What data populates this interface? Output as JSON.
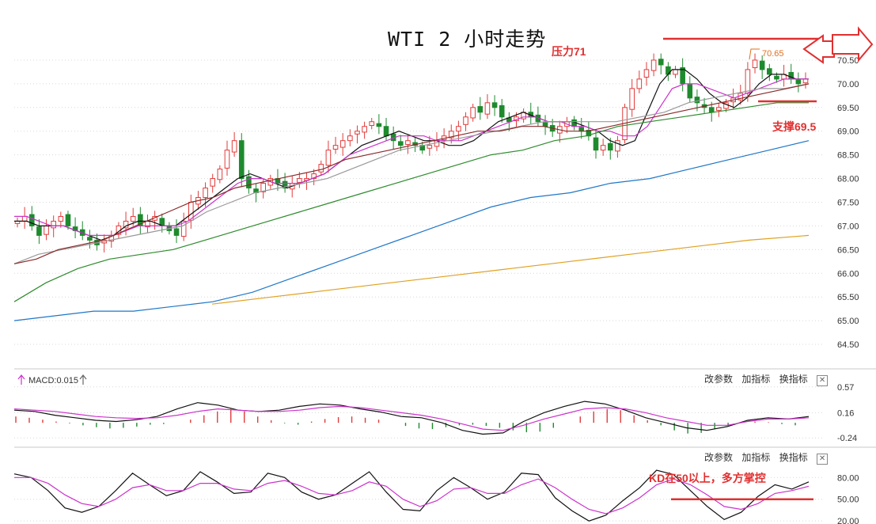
{
  "page": {
    "title": "WTI 2 小时走势"
  },
  "panels": {
    "macd": {
      "label": "MACD:0.015"
    },
    "toolbar": {
      "params": "改参数",
      "add": "加指标",
      "switch": "换指标",
      "close": "✕"
    }
  },
  "annotations": {
    "resistance": "压力71",
    "support": "支撑69.5",
    "peak": "70.65",
    "kd": "KD在50以上，多方掌控"
  },
  "colors": {
    "up": "#e23b3b",
    "down": "#1e8a2e",
    "ma5": "#111111",
    "ma10": "#cc33cc",
    "ma20": "#999999",
    "ma30": "#8b2a2a",
    "ma60": "#2e8b2e",
    "ma120": "#1f77c8",
    "ma250": "#e0a020",
    "annot": "#e03030",
    "peak": "#e07020"
  },
  "chart_data": [
    {
      "type": "candlestick",
      "title": "WTI 2 小时走势",
      "ylim": [
        64.25,
        70.85
      ],
      "y_ticks": [
        "64.50",
        "65.00",
        "65.50",
        "66.00",
        "66.50",
        "67.00",
        "67.50",
        "68.00",
        "68.50",
        "69.00",
        "69.50",
        "70.00",
        "70.50"
      ],
      "grid": true,
      "closes": [
        67.1,
        67.2,
        67.0,
        66.8,
        67.0,
        67.1,
        67.2,
        67.0,
        66.9,
        66.8,
        66.7,
        66.6,
        66.7,
        66.8,
        67.0,
        67.1,
        67.2,
        67.0,
        67.1,
        67.2,
        67.0,
        66.9,
        66.8,
        67.1,
        67.5,
        67.6,
        67.8,
        68.0,
        68.2,
        68.6,
        68.8,
        68.0,
        67.8,
        67.7,
        67.9,
        68.0,
        67.9,
        67.8,
        67.9,
        68.0,
        68.0,
        68.1,
        68.3,
        68.6,
        68.7,
        68.8,
        68.9,
        69.0,
        69.1,
        69.2,
        69.1,
        68.9,
        68.8,
        68.7,
        68.8,
        68.7,
        68.6,
        68.7,
        68.8,
        68.9,
        69.0,
        69.1,
        69.3,
        69.5,
        69.4,
        69.6,
        69.5,
        69.3,
        69.2,
        69.3,
        69.4,
        69.3,
        69.2,
        69.1,
        69.0,
        69.1,
        69.2,
        69.1,
        69.0,
        68.9,
        68.6,
        68.7,
        68.6,
        68.8,
        69.5,
        69.9,
        70.1,
        70.3,
        70.5,
        70.4,
        70.2,
        70.3,
        70.0,
        69.7,
        69.6,
        69.5,
        69.4,
        69.5,
        69.6,
        69.7,
        69.8,
        70.3,
        70.5,
        70.3,
        70.2,
        70.1,
        70.2,
        70.1,
        70.0,
        70.1
      ],
      "series": [
        {
          "name": "MA5",
          "values": [
            67.1,
            67.1,
            67.0,
            67.0,
            67.0,
            66.9,
            66.8,
            66.7,
            66.8,
            67.0,
            67.1,
            67.1,
            67.0,
            67.0,
            67.2,
            67.4,
            67.6,
            67.8,
            68.0,
            68.1,
            68.0,
            67.9,
            67.8,
            67.9,
            68.0,
            68.1,
            68.3,
            68.5,
            68.7,
            68.8,
            68.9,
            69.0,
            68.9,
            68.8,
            68.8,
            68.7,
            68.7,
            68.8,
            69.0,
            69.2,
            69.3,
            69.4,
            69.3,
            69.2,
            69.2,
            69.2,
            69.1,
            69.0,
            68.8,
            68.7,
            68.8,
            69.4,
            70.0,
            70.3,
            70.3,
            70.1,
            69.8,
            69.6,
            69.5,
            69.7,
            70.0,
            70.2,
            70.2,
            70.1,
            70.1
          ]
        },
        {
          "name": "MA10",
          "values": [
            67.2,
            67.2,
            67.1,
            67.0,
            67.0,
            66.9,
            66.8,
            66.8,
            66.8,
            66.9,
            67.0,
            67.0,
            67.0,
            67.0,
            67.1,
            67.3,
            67.5,
            67.7,
            67.9,
            68.0,
            68.0,
            67.9,
            67.9,
            67.9,
            68.0,
            68.1,
            68.3,
            68.5,
            68.6,
            68.7,
            68.8,
            68.9,
            68.9,
            68.9,
            68.8,
            68.8,
            68.8,
            68.9,
            69.0,
            69.1,
            69.2,
            69.3,
            69.3,
            69.2,
            69.2,
            69.1,
            69.1,
            69.0,
            69.0,
            68.9,
            68.9,
            69.1,
            69.5,
            69.9,
            70.0,
            70.0,
            69.9,
            69.8,
            69.7,
            69.8,
            69.9,
            70.0,
            70.1,
            70.1,
            70.1
          ]
        },
        {
          "name": "MA20",
          "values": [
            66.2,
            66.4,
            66.5,
            66.6,
            66.7,
            66.8,
            66.9,
            67.0,
            67.3,
            67.5,
            67.7,
            67.8,
            67.9,
            68.0,
            68.2,
            68.4,
            68.6,
            68.7,
            68.8,
            68.9,
            69.0,
            69.1,
            69.2,
            69.2,
            69.2,
            69.2,
            69.3,
            69.4,
            69.6,
            69.7,
            69.8,
            69.9,
            69.9,
            70.0
          ]
        },
        {
          "name": "MA30",
          "values": [
            66.2,
            66.3,
            66.5,
            66.6,
            66.7,
            66.9,
            67.1,
            67.3,
            67.5,
            67.6,
            67.8,
            67.9,
            68.0,
            68.1,
            68.2,
            68.4,
            68.5,
            68.6,
            68.7,
            68.8,
            68.9,
            69.0,
            69.0,
            69.1,
            69.1,
            69.0,
            69.0,
            69.1,
            69.2,
            69.3,
            69.4,
            69.5,
            69.6,
            69.7,
            69.8,
            69.9,
            70.0
          ]
        },
        {
          "name": "MA60",
          "values": [
            65.4,
            65.8,
            66.1,
            66.3,
            66.4,
            66.5,
            66.7,
            66.9,
            67.1,
            67.3,
            67.5,
            67.7,
            67.9,
            68.1,
            68.3,
            68.5,
            68.6,
            68.8,
            68.9,
            69.1,
            69.2,
            69.3,
            69.4,
            69.5,
            69.6,
            69.6
          ]
        },
        {
          "name": "MA120",
          "values": [
            65.0,
            65.1,
            65.2,
            65.2,
            65.3,
            65.4,
            65.6,
            65.9,
            66.2,
            66.5,
            66.8,
            67.1,
            67.4,
            67.6,
            67.7,
            67.9,
            68.0,
            68.2,
            68.4,
            68.6,
            68.8
          ]
        },
        {
          "name": "MA250",
          "values": [
            65.35,
            65.5,
            65.65,
            65.8,
            65.95,
            66.1,
            66.25,
            66.4,
            66.55,
            66.7,
            66.8
          ]
        }
      ],
      "resistance": 71.0,
      "support": 69.5,
      "peak": 70.65
    },
    {
      "type": "bar",
      "name": "MACD",
      "y_ticks": [
        "0.57",
        "0.16",
        "-0.24"
      ],
      "ylim": [
        -0.35,
        0.68
      ],
      "grid": true,
      "hist": [
        0.1,
        0.08,
        0.05,
        0.02,
        -0.01,
        -0.04,
        -0.07,
        -0.09,
        -0.08,
        -0.06,
        -0.03,
        -0.02,
        0.0,
        0.05,
        0.12,
        0.18,
        0.22,
        0.18,
        0.1,
        0.04,
        -0.01,
        -0.03,
        0.02,
        0.06,
        0.09,
        0.1,
        0.08,
        0.05,
        0.0,
        -0.05,
        -0.09,
        -0.1,
        -0.07,
        -0.04,
        -0.03,
        -0.05,
        -0.08,
        -0.12,
        -0.15,
        -0.14,
        -0.08,
        0.0,
        0.1,
        0.18,
        0.22,
        0.2,
        0.12,
        0.04,
        -0.04,
        -0.12,
        -0.17,
        -0.16,
        -0.1,
        -0.05,
        0.01,
        0.02,
        0.01,
        -0.02,
        -0.04,
        0.0
      ],
      "dif": [
        0.2,
        0.18,
        0.12,
        0.08,
        0.04,
        0.02,
        0.05,
        0.1,
        0.22,
        0.32,
        0.28,
        0.2,
        0.18,
        0.2,
        0.26,
        0.3,
        0.28,
        0.22,
        0.17,
        0.1,
        0.08,
        0.0,
        -0.12,
        -0.18,
        -0.16,
        0.02,
        0.16,
        0.26,
        0.34,
        0.3,
        0.2,
        0.08,
        0.0,
        -0.08,
        -0.12,
        -0.06,
        0.04,
        0.08,
        0.06,
        0.1
      ],
      "dea": [
        0.22,
        0.2,
        0.18,
        0.14,
        0.1,
        0.08,
        0.07,
        0.08,
        0.12,
        0.18,
        0.22,
        0.2,
        0.18,
        0.18,
        0.2,
        0.24,
        0.26,
        0.24,
        0.2,
        0.16,
        0.12,
        0.06,
        -0.02,
        -0.1,
        -0.12,
        -0.04,
        0.06,
        0.14,
        0.22,
        0.24,
        0.22,
        0.16,
        0.08,
        0.02,
        -0.04,
        -0.04,
        0.02,
        0.06,
        0.06,
        0.08
      ]
    },
    {
      "type": "line",
      "name": "KD",
      "y_ticks": [
        "80.00",
        "50.00",
        "20.00"
      ],
      "ylim": [
        18,
        100
      ],
      "grid": true,
      "k": [
        85,
        80,
        62,
        38,
        32,
        40,
        62,
        86,
        70,
        55,
        62,
        88,
        74,
        58,
        60,
        86,
        80,
        60,
        50,
        56,
        72,
        88,
        60,
        36,
        34,
        62,
        80,
        66,
        50,
        60,
        86,
        84,
        52,
        34,
        20,
        28,
        48,
        66,
        90,
        84,
        62,
        40,
        22,
        32,
        54,
        70,
        64,
        74
      ],
      "d": [
        80,
        80,
        72,
        56,
        44,
        40,
        50,
        66,
        70,
        62,
        62,
        72,
        72,
        64,
        62,
        72,
        76,
        68,
        58,
        56,
        62,
        74,
        68,
        50,
        40,
        48,
        64,
        66,
        58,
        58,
        70,
        78,
        66,
        50,
        36,
        30,
        38,
        52,
        70,
        78,
        70,
        56,
        40,
        36,
        44,
        58,
        62,
        68
      ],
      "reference": 50
    }
  ]
}
